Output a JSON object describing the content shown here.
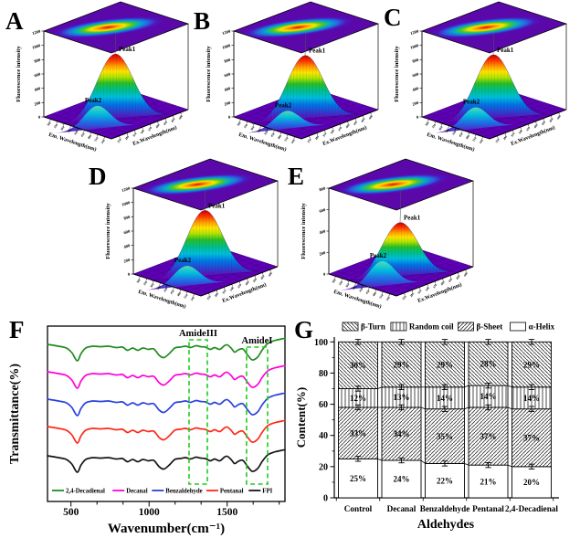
{
  "figure": {
    "panels": [
      {
        "letter": "A"
      },
      {
        "letter": "B"
      },
      {
        "letter": "C"
      },
      {
        "letter": "D"
      },
      {
        "letter": "E"
      },
      {
        "letter": "F"
      },
      {
        "letter": "G"
      }
    ]
  },
  "chart_data": [
    {
      "id": "A",
      "type": "surface3d",
      "z_axis_label": "Fluorescence intensity",
      "z_max": 1200,
      "z_ticks": [
        "0",
        "200",
        "400",
        "600",
        "800",
        "1000",
        "1200"
      ],
      "em_axis_label": "Em. Wavelength(nm)",
      "ex_axis_label": "Ex.Wavelength(nm)",
      "em_ticks": [
        "300",
        "330",
        "360",
        "390",
        "420",
        "450",
        "480",
        "510",
        "540"
      ],
      "ex_ticks": [
        "250",
        "280",
        "310",
        "340",
        "370",
        "400",
        "430",
        "460",
        "490"
      ],
      "peak1_label": "Peak1",
      "peak2_label": "Peak2",
      "peak1_value": 880,
      "peak2_value": 320
    },
    {
      "id": "B",
      "type": "surface3d",
      "z_axis_label": "Fluorescence intensity",
      "z_max": 1200,
      "z_ticks": [
        "0",
        "200",
        "400",
        "600",
        "800",
        "1000",
        "1200"
      ],
      "em_axis_label": "Em. Wavelength(nm)",
      "ex_axis_label": "Ex.Wavelength(nm)",
      "em_ticks": [
        "300",
        "330",
        "360",
        "390",
        "420",
        "450",
        "480",
        "510",
        "540"
      ],
      "ex_ticks": [
        "250",
        "280",
        "310",
        "340",
        "370",
        "400",
        "430",
        "460",
        "490"
      ],
      "peak1_label": "Peak1",
      "peak2_label": "Peak2",
      "peak1_value": 860,
      "peak2_value": 250
    },
    {
      "id": "C",
      "type": "surface3d",
      "z_axis_label": "Fluorescence intensity",
      "z_max": 1200,
      "z_ticks": [
        "0",
        "200",
        "400",
        "600",
        "800",
        "1000",
        "1200"
      ],
      "em_axis_label": "Em. Wavelength(nm)",
      "ex_axis_label": "Ex.Wavelength(nm)",
      "em_ticks": [
        "300",
        "330",
        "360",
        "390",
        "420",
        "450",
        "480",
        "510",
        "540"
      ],
      "ex_ticks": [
        "250",
        "280",
        "310",
        "340",
        "370",
        "400",
        "430",
        "460",
        "490"
      ],
      "peak1_label": "Peak1",
      "peak2_label": "Peak2",
      "peak1_value": 870,
      "peak2_value": 300
    },
    {
      "id": "D",
      "type": "surface3d",
      "z_axis_label": "Fluorescence intensity",
      "z_max": 1200,
      "z_ticks": [
        "0",
        "200",
        "400",
        "600",
        "800",
        "1000",
        "1200"
      ],
      "em_axis_label": "Em. Wavelength(nm)",
      "ex_axis_label": "Ex.Wavelength(nm)",
      "em_ticks": [
        "300",
        "330",
        "360",
        "390",
        "420",
        "450",
        "480",
        "510",
        "540"
      ],
      "ex_ticks": [
        "250",
        "280",
        "310",
        "340",
        "370",
        "400",
        "430",
        "460",
        "490"
      ],
      "peak1_label": "Peak1",
      "peak2_label": "Peak2",
      "peak1_value": 890,
      "peak2_value": 280
    },
    {
      "id": "E",
      "type": "surface3d",
      "z_axis_label": "Fluorescence intensity",
      "z_max": 800,
      "z_ticks": [
        "0",
        "200",
        "400",
        "600",
        "800"
      ],
      "em_axis_label": "Em. Wavelength(nm)",
      "ex_axis_label": "Ex.Wavelength(nm)",
      "em_ticks": [
        "300",
        "330",
        "360",
        "390",
        "420",
        "450",
        "480",
        "510",
        "540"
      ],
      "ex_ticks": [
        "250",
        "280",
        "310",
        "340",
        "370",
        "400",
        "430",
        "460",
        "490"
      ],
      "peak1_label": "Peak1",
      "peak2_label": "Peak2",
      "peak1_value": 480,
      "peak2_value": 230
    },
    {
      "id": "F",
      "type": "line",
      "xlabel": "Wavenumber(cm⁻¹)",
      "ylabel": "Transmittance(%)",
      "x_ticks": [
        "500",
        "1000",
        "1500"
      ],
      "x_range": [
        350,
        1870
      ],
      "series": [
        {
          "name": "2,4-Decadienal",
          "color": "#1F8C1F",
          "offset": 33
        },
        {
          "name": "Decanal",
          "color": "#FF00DC",
          "offset": 63
        },
        {
          "name": "Benzaldehyde",
          "color": "#2841DC",
          "offset": 93
        },
        {
          "name": "Pentanal",
          "color": "#FF2819",
          "offset": 123
        },
        {
          "name": "FPI",
          "color": "#141414",
          "offset": 155
        }
      ],
      "profile": [
        [
          350,
          -1
        ],
        [
          420,
          1
        ],
        [
          470,
          3
        ],
        [
          505,
          8
        ],
        [
          540,
          17
        ],
        [
          565,
          9
        ],
        [
          595,
          3
        ],
        [
          640,
          1
        ],
        [
          690,
          1.5
        ],
        [
          740,
          1
        ],
        [
          790,
          2.5
        ],
        [
          830,
          2
        ],
        [
          862,
          5.5
        ],
        [
          895,
          3
        ],
        [
          928,
          5.5
        ],
        [
          960,
          3
        ],
        [
          995,
          4.5
        ],
        [
          1030,
          4
        ],
        [
          1065,
          11
        ],
        [
          1095,
          13.5
        ],
        [
          1130,
          9
        ],
        [
          1165,
          3
        ],
        [
          1200,
          2
        ],
        [
          1235,
          1
        ],
        [
          1265,
          2.5
        ],
        [
          1300,
          0.5
        ],
        [
          1330,
          1.5
        ],
        [
          1360,
          2
        ],
        [
          1392,
          4.5
        ],
        [
          1420,
          2.5
        ],
        [
          1452,
          4.5
        ],
        [
          1482,
          0.5
        ],
        [
          1500,
          -0.5
        ],
        [
          1525,
          3
        ],
        [
          1548,
          7.5
        ],
        [
          1572,
          5
        ],
        [
          1600,
          4
        ],
        [
          1628,
          10
        ],
        [
          1660,
          16
        ],
        [
          1695,
          13
        ],
        [
          1725,
          5
        ],
        [
          1760,
          -2
        ],
        [
          1800,
          -5
        ],
        [
          1850,
          -7
        ],
        [
          1870,
          -7.5
        ]
      ],
      "annotations": [
        {
          "label": "AmideIII",
          "wn": [
            1256,
            1373
          ],
          "y": [
            27,
            185
          ]
        },
        {
          "label": "AmideI",
          "wn": [
            1624,
            1759
          ],
          "y": [
            35,
            185
          ]
        }
      ]
    },
    {
      "id": "G",
      "type": "stacked-bar",
      "xlabel": "Aldehydes",
      "ylabel": "Content(%)",
      "ylim": [
        0,
        100
      ],
      "yticks": [
        0,
        20,
        40,
        60,
        80,
        100
      ],
      "categories": [
        "Control",
        "Decanal",
        "Benzaldehyde",
        "Pentanal",
        "2,4-Decadienal"
      ],
      "series": [
        {
          "name": "α-Helix",
          "pattern": "none",
          "values": [
            25,
            24,
            22,
            21,
            20
          ]
        },
        {
          "name": "β-Sheet",
          "pattern": "bsheet",
          "values": [
            33,
            34,
            35,
            37,
            37
          ]
        },
        {
          "name": "Random coil",
          "pattern": "coil",
          "values": [
            12,
            13,
            14,
            14,
            14
          ]
        },
        {
          "name": "β-Turn",
          "pattern": "bturn",
          "values": [
            30,
            29,
            29,
            28,
            29
          ]
        }
      ],
      "legend_order": [
        "β-Turn",
        "Random coil",
        "β-Sheet",
        "α-Helix"
      ],
      "error_bar": 1.5
    }
  ]
}
